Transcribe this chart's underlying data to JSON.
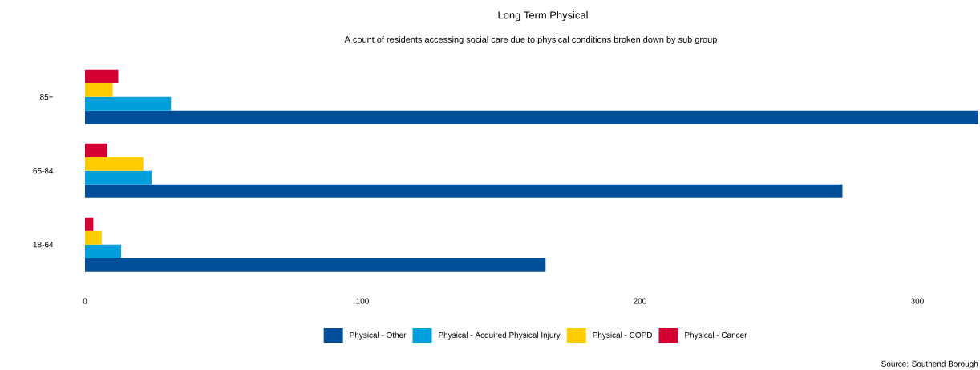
{
  "chart_data": {
    "type": "bar",
    "orientation": "horizontal",
    "title": "Long Term Physical",
    "subtitle": "A count of residents accessing social care due to physical conditions broken down by sub group",
    "categories": [
      "85+",
      "65-84",
      "18-64"
    ],
    "series": [
      {
        "name": "Physical - Other",
        "color": "#004f98",
        "values": [
          322,
          273,
          166
        ]
      },
      {
        "name": "Physical - Acquired Physical Injury",
        "color": "#00a0df",
        "values": [
          31,
          24,
          13
        ]
      },
      {
        "name": "Physical - COPD",
        "color": "#ffcc00",
        "values": [
          10,
          21,
          6
        ]
      },
      {
        "name": "Physical - Cancer",
        "color": "#d50032",
        "values": [
          12,
          8,
          3
        ]
      }
    ],
    "xlim": [
      0,
      322
    ],
    "xticks": [
      0,
      100,
      200,
      300
    ],
    "grid": false,
    "legend": "bottom",
    "annotations": [
      "Source: Southend Borough"
    ]
  }
}
